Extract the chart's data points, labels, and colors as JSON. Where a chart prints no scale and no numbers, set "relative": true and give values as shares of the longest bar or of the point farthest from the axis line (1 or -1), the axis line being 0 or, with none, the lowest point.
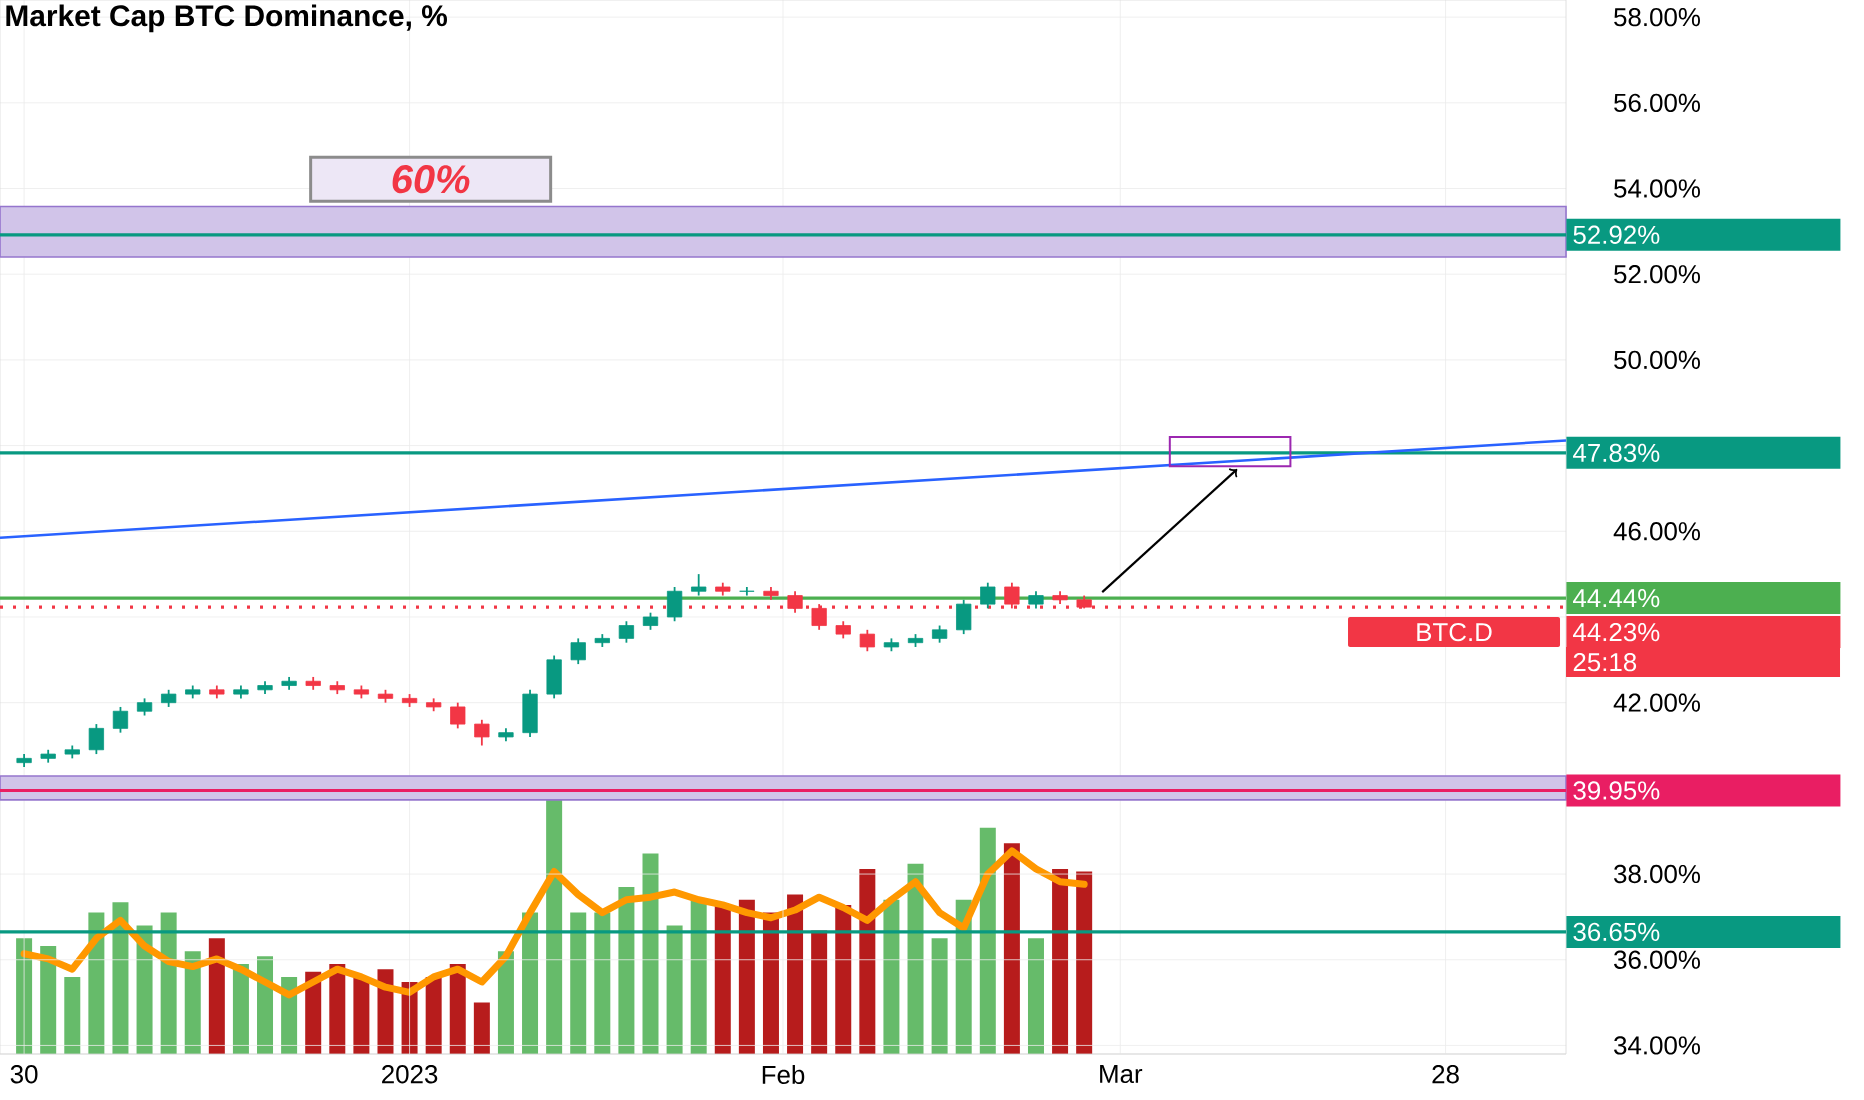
{
  "chart_data": [
    {
      "type": "candlestick",
      "title": "Market Cap BTC Dominance, %",
      "x": [
        "2022-11-30",
        "2022-12-02",
        "2022-12-04",
        "2022-12-06",
        "2022-12-08",
        "2022-12-10",
        "2022-12-12",
        "2022-12-14",
        "2022-12-16",
        "2022-12-18",
        "2022-12-20",
        "2022-12-22",
        "2022-12-24",
        "2022-12-26",
        "2022-12-28",
        "2022-12-30",
        "2023-01-01",
        "2023-01-03",
        "2023-01-05",
        "2023-01-07",
        "2023-01-09",
        "2023-01-11",
        "2023-01-13",
        "2023-01-15",
        "2023-01-17",
        "2023-01-19",
        "2023-01-21",
        "2023-01-23",
        "2023-01-25",
        "2023-01-27",
        "2023-01-29",
        "2023-01-31",
        "2023-02-02",
        "2023-02-04",
        "2023-02-06",
        "2023-02-08",
        "2023-02-10",
        "2023-02-12",
        "2023-02-14",
        "2023-02-16",
        "2023-02-18",
        "2023-02-20",
        "2023-02-22",
        "2023-02-24",
        "2023-02-26"
      ],
      "ohlc": [
        [
          40.6,
          40.8,
          40.5,
          40.7
        ],
        [
          40.7,
          40.9,
          40.6,
          40.8
        ],
        [
          40.8,
          41.0,
          40.7,
          40.9
        ],
        [
          40.9,
          41.5,
          40.8,
          41.4
        ],
        [
          41.4,
          41.9,
          41.3,
          41.8
        ],
        [
          41.8,
          42.1,
          41.7,
          42.0
        ],
        [
          42.0,
          42.3,
          41.9,
          42.2
        ],
        [
          42.2,
          42.4,
          42.1,
          42.3
        ],
        [
          42.3,
          42.4,
          42.1,
          42.2
        ],
        [
          42.2,
          42.4,
          42.1,
          42.3
        ],
        [
          42.3,
          42.5,
          42.2,
          42.4
        ],
        [
          42.4,
          42.6,
          42.3,
          42.5
        ],
        [
          42.5,
          42.6,
          42.3,
          42.4
        ],
        [
          42.4,
          42.5,
          42.2,
          42.3
        ],
        [
          42.3,
          42.4,
          42.1,
          42.2
        ],
        [
          42.2,
          42.3,
          42.0,
          42.1
        ],
        [
          42.1,
          42.2,
          41.9,
          42.0
        ],
        [
          42.0,
          42.1,
          41.8,
          41.9
        ],
        [
          41.9,
          42.0,
          41.4,
          41.5
        ],
        [
          41.5,
          41.6,
          41.0,
          41.2
        ],
        [
          41.2,
          41.4,
          41.1,
          41.3
        ],
        [
          41.3,
          42.3,
          41.2,
          42.2
        ],
        [
          42.2,
          43.1,
          42.1,
          43.0
        ],
        [
          43.0,
          43.5,
          42.9,
          43.4
        ],
        [
          43.4,
          43.6,
          43.3,
          43.5
        ],
        [
          43.5,
          43.9,
          43.4,
          43.8
        ],
        [
          43.8,
          44.1,
          43.7,
          44.0
        ],
        [
          44.0,
          44.7,
          43.9,
          44.6
        ],
        [
          44.6,
          45.0,
          44.5,
          44.7
        ],
        [
          44.7,
          44.8,
          44.5,
          44.6
        ],
        [
          44.6,
          44.7,
          44.5,
          44.6
        ],
        [
          44.6,
          44.7,
          44.4,
          44.5
        ],
        [
          44.5,
          44.6,
          44.1,
          44.2
        ],
        [
          44.2,
          44.3,
          43.7,
          43.8
        ],
        [
          43.8,
          43.9,
          43.5,
          43.6
        ],
        [
          43.6,
          43.7,
          43.2,
          43.3
        ],
        [
          43.3,
          43.5,
          43.2,
          43.4
        ],
        [
          43.4,
          43.6,
          43.3,
          43.5
        ],
        [
          43.5,
          43.8,
          43.4,
          43.7
        ],
        [
          43.7,
          44.4,
          43.6,
          44.3
        ],
        [
          44.3,
          44.8,
          44.2,
          44.7
        ],
        [
          44.7,
          44.8,
          44.2,
          44.3
        ],
        [
          44.3,
          44.6,
          44.2,
          44.5
        ],
        [
          44.5,
          44.6,
          44.3,
          44.4
        ],
        [
          44.4,
          44.5,
          44.2,
          44.23
        ]
      ],
      "series": [
        {
          "type": "line",
          "color": "#2962ff",
          "x": [
            "2022-11-28",
            "2023-04-07"
          ],
          "values": [
            45.85,
            48.12
          ]
        }
      ],
      "xlim": [
        "2022-11-28",
        "2023-04-07"
      ],
      "xticks": [
        {
          "value": "2022-11-30",
          "label": "30"
        },
        {
          "value": "2023-01-01",
          "label": "2023"
        },
        {
          "value": "2023-02-01",
          "label": "Feb"
        },
        {
          "value": "2023-03-01",
          "label": "Mar"
        },
        {
          "value": "2023-03-28",
          "label": "28"
        }
      ],
      "ylim": [
        33.8,
        58.4
      ],
      "yticks": [
        {
          "value": 34,
          "label": "34.00%"
        },
        {
          "value": 36,
          "label": "36.00%"
        },
        {
          "value": 38,
          "label": "38.00%"
        },
        {
          "value": 40,
          "label": null
        },
        {
          "value": 42,
          "label": "42.00%"
        },
        {
          "value": 44,
          "label": null
        },
        {
          "value": 46,
          "label": "46.00%"
        },
        {
          "value": 48,
          "label": null
        },
        {
          "value": 50,
          "label": "50.00%"
        },
        {
          "value": 52,
          "label": "52.00%"
        },
        {
          "value": 54,
          "label": "54.00%"
        },
        {
          "value": 56,
          "label": "56.00%"
        },
        {
          "value": 58,
          "label": "58.00%"
        }
      ],
      "ref_lines": [
        {
          "axis": "y",
          "value": 52.92,
          "label": "52.92%",
          "color": "#089981"
        },
        {
          "axis": "y",
          "value": 47.83,
          "label": "47.83%",
          "color": "#089981"
        },
        {
          "axis": "y",
          "value": 44.44,
          "label": "44.44%",
          "color": "#4caf50"
        },
        {
          "axis": "y",
          "value": 44.23,
          "label": "44.23%",
          "color": "#f23645",
          "line_style": "dotted"
        },
        {
          "axis": "y",
          "value": 39.95,
          "label": "39.95%",
          "color": "#e91e63"
        },
        {
          "axis": "y",
          "value": 36.65,
          "label": "36.65%",
          "color": "#089981"
        }
      ],
      "bands": [
        {
          "axis": "y",
          "from": 52.4,
          "to": 53.58,
          "color": "#d1c4e9"
        },
        {
          "axis": "y",
          "from": 39.73,
          "to": 40.29,
          "color": "#d1c4e9"
        }
      ],
      "annotations": [
        "60%",
        {
          "text": "BTC.D",
          "y": 44.23
        },
        "25:18"
      ],
      "grid": true
    },
    {
      "type": "bar",
      "relative": true,
      "x": [
        "2022-11-30",
        "2022-12-02",
        "2022-12-04",
        "2022-12-06",
        "2022-12-08",
        "2022-12-10",
        "2022-12-12",
        "2022-12-14",
        "2022-12-16",
        "2022-12-18",
        "2022-12-20",
        "2022-12-22",
        "2022-12-24",
        "2022-12-26",
        "2022-12-28",
        "2022-12-30",
        "2023-01-01",
        "2023-01-03",
        "2023-01-05",
        "2023-01-07",
        "2023-01-09",
        "2023-01-11",
        "2023-01-13",
        "2023-01-15",
        "2023-01-17",
        "2023-01-19",
        "2023-01-21",
        "2023-01-23",
        "2023-01-25",
        "2023-01-27",
        "2023-01-29",
        "2023-01-31",
        "2023-02-02",
        "2023-02-04",
        "2023-02-06",
        "2023-02-08",
        "2023-02-10",
        "2023-02-12",
        "2023-02-14",
        "2023-02-16",
        "2023-02-18",
        "2023-02-20",
        "2023-02-22",
        "2023-02-24",
        "2023-02-26"
      ],
      "xlim": [
        "2022-11-28",
        "2023-04-07"
      ],
      "series": [
        {
          "type": "bar",
          "values": [
            0.45,
            0.42,
            0.3,
            0.55,
            0.59,
            0.5,
            0.55,
            0.4,
            0.45,
            0.35,
            0.38,
            0.3,
            0.32,
            0.35,
            0.3,
            0.33,
            0.28,
            0.3,
            0.35,
            0.2,
            0.4,
            0.55,
            1.0,
            0.55,
            0.55,
            0.65,
            0.78,
            0.5,
            0.6,
            0.58,
            0.6,
            0.55,
            0.62,
            0.48,
            0.58,
            0.72,
            0.6,
            0.74,
            0.45,
            0.6,
            0.88,
            0.82,
            0.45,
            0.72,
            0.71
          ],
          "colors": [
            "#66bb6a",
            "#66bb6a",
            "#66bb6a",
            "#66bb6a",
            "#66bb6a",
            "#66bb6a",
            "#66bb6a",
            "#66bb6a",
            "#b71c1c",
            "#66bb6a",
            "#66bb6a",
            "#66bb6a",
            "#b71c1c",
            "#b71c1c",
            "#b71c1c",
            "#b71c1c",
            "#b71c1c",
            "#b71c1c",
            "#b71c1c",
            "#b71c1c",
            "#66bb6a",
            "#66bb6a",
            "#66bb6a",
            "#66bb6a",
            "#66bb6a",
            "#66bb6a",
            "#66bb6a",
            "#66bb6a",
            "#66bb6a",
            "#b71c1c",
            "#b71c1c",
            "#b71c1c",
            "#b71c1c",
            "#b71c1c",
            "#b71c1c",
            "#b71c1c",
            "#66bb6a",
            "#66bb6a",
            "#66bb6a",
            "#66bb6a",
            "#66bb6a",
            "#b71c1c",
            "#66bb6a",
            "#b71c1c",
            "#b71c1c"
          ]
        },
        {
          "type": "line",
          "color": "#ff9800",
          "values": [
            0.39,
            0.37,
            0.33,
            0.45,
            0.52,
            0.42,
            0.36,
            0.34,
            0.37,
            0.33,
            0.28,
            0.23,
            0.28,
            0.33,
            0.3,
            0.26,
            0.24,
            0.3,
            0.33,
            0.28,
            0.38,
            0.55,
            0.71,
            0.62,
            0.55,
            0.6,
            0.61,
            0.63,
            0.6,
            0.58,
            0.55,
            0.53,
            0.56,
            0.61,
            0.57,
            0.52,
            0.6,
            0.67,
            0.55,
            0.49,
            0.7,
            0.79,
            0.72,
            0.67,
            0.66
          ]
        }
      ]
    }
  ]
}
